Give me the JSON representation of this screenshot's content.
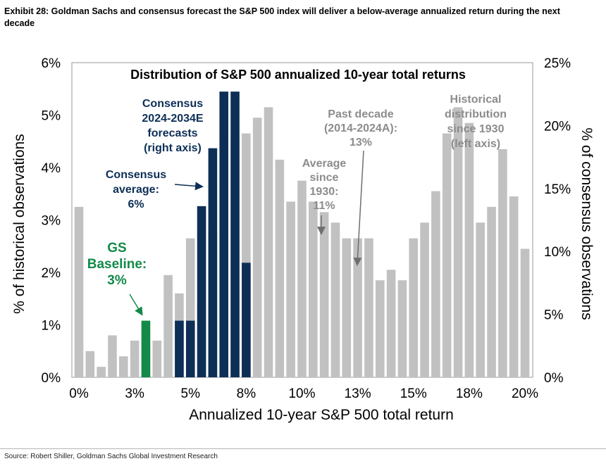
{
  "exhibit_title": "Exhibit 28: Goldman Sachs and consensus forecast the S&P 500 index will deliver a below-average annualized return during the next decade",
  "source": "Source: Robert Shiller, Goldman Sachs Global Investment Research",
  "colors": {
    "historical": "#c1c1c1",
    "consensus": "#0d2f56",
    "gs_baseline": "#138a48",
    "annotation_grey": "#8c8c8c",
    "annotation_navy": "#0d2f56"
  },
  "chart_data": {
    "type": "bar",
    "title": "Distribution of S&P 500 annualized 10-year total returns",
    "xlabel": "Annualized 10-year S&P 500 total return",
    "ylabel_left": "% of historical observations",
    "ylabel_right": "% of consensus observations",
    "x_range": [
      0,
      20
    ],
    "ylim_left": [
      0,
      6
    ],
    "ylim_right": [
      0,
      25
    ],
    "x_tick_labels": [
      "0%",
      "3%",
      "5%",
      "8%",
      "10%",
      "13%",
      "15%",
      "18%",
      "20%"
    ],
    "x_tick_values": [
      0,
      2.5,
      5,
      7.5,
      10,
      12.5,
      15,
      17.5,
      20
    ],
    "y_left_tick_labels": [
      "0%",
      "1%",
      "2%",
      "3%",
      "4%",
      "5%",
      "6%"
    ],
    "y_left_tick_values": [
      0,
      1,
      2,
      3,
      4,
      5,
      6
    ],
    "y_right_tick_labels": [
      "0%",
      "5%",
      "10%",
      "15%",
      "20%",
      "25%"
    ],
    "y_right_tick_values": [
      0,
      5,
      10,
      15,
      20,
      25
    ],
    "series": [
      {
        "name": "Historical distribution since 1930 (left axis)",
        "axis": "left",
        "x": [
          0,
          0.5,
          1,
          1.5,
          2,
          2.5,
          3,
          3.5,
          4,
          4.5,
          5,
          5.5,
          6,
          6.5,
          7,
          7.5,
          8,
          8.5,
          9,
          9.5,
          10,
          10.5,
          11,
          11.5,
          12,
          12.5,
          13,
          13.5,
          14,
          14.5,
          15,
          15.5,
          16,
          16.5,
          17,
          17.5,
          18,
          18.5,
          19,
          19.5,
          20
        ],
        "values": [
          3.25,
          0.5,
          0.2,
          0.8,
          0.4,
          0.7,
          0.7,
          0.7,
          1.95,
          1.6,
          2.65,
          1.4,
          2.8,
          3.7,
          4.55,
          4.65,
          4.95,
          5.15,
          4.15,
          3.35,
          3.75,
          3.35,
          3.15,
          2.95,
          2.65,
          2.65,
          2.65,
          1.85,
          2.05,
          1.85,
          2.65,
          2.95,
          3.55,
          4.65,
          5.15,
          4.85,
          2.95,
          3.25,
          4.35,
          3.45,
          2.45
        ]
      },
      {
        "name": "Consensus 2024-2034E forecasts (right axis)",
        "axis": "right",
        "x": [
          3,
          4.5,
          5,
          5.5,
          6,
          6.5,
          7,
          7.5
        ],
        "values": [
          4.5,
          4.5,
          4.5,
          13.6,
          18.2,
          22.7,
          22.7,
          9.1
        ]
      }
    ],
    "highlight": {
      "name": "GS Baseline",
      "x": 3,
      "value": 4.5,
      "axis": "right"
    },
    "annotations": {
      "consensus_forecast": [
        "Consensus",
        "2024-2034E",
        "forecasts",
        "(right axis)"
      ],
      "consensus_average": [
        "Consensus",
        "average:",
        "6%"
      ],
      "gs_baseline": [
        "GS",
        "Baseline:",
        "3%"
      ],
      "average_since_1930": [
        "Average",
        "since",
        "1930:",
        "11%"
      ],
      "past_decade": [
        "Past decade",
        "(2014-2024A):",
        "13%"
      ],
      "historical": [
        "Historical",
        "distribution",
        "since 1930",
        "(left axis)"
      ]
    },
    "grid": false,
    "legend": "none"
  }
}
